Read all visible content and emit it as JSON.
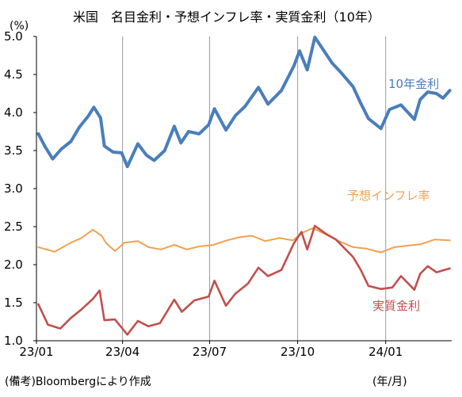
{
  "chart_data": {
    "type": "line",
    "title": "米国　名目金利・予想インフレ率・実質金利（10年）",
    "ylabel": "(%)",
    "xlabel": "(年/月)",
    "source": "(備考)Bloombergにより作成",
    "ylim": [
      1.0,
      5.0
    ],
    "yticks": [
      "5.0",
      "4.5",
      "4.0",
      "3.5",
      "3.0",
      "2.5",
      "2.0",
      "1.5",
      "1.0"
    ],
    "xticks": [
      "23/01",
      "23/04",
      "23/07",
      "23/10",
      "24/01"
    ],
    "xlim": [
      "2023-01-01",
      "2024-03-10"
    ],
    "grid": "x-major",
    "series": [
      {
        "name": "10年金利",
        "color": "#4a7ebb",
        "points": [
          [
            "2023-01-03",
            3.72
          ],
          [
            "2023-01-10",
            3.55
          ],
          [
            "2023-01-18",
            3.39
          ],
          [
            "2023-01-27",
            3.52
          ],
          [
            "2023-02-06",
            3.62
          ],
          [
            "2023-02-15",
            3.81
          ],
          [
            "2023-02-24",
            3.95
          ],
          [
            "2023-03-02",
            4.07
          ],
          [
            "2023-03-09",
            3.93
          ],
          [
            "2023-03-13",
            3.56
          ],
          [
            "2023-03-22",
            3.48
          ],
          [
            "2023-03-31",
            3.47
          ],
          [
            "2023-04-06",
            3.29
          ],
          [
            "2023-04-17",
            3.59
          ],
          [
            "2023-04-26",
            3.44
          ],
          [
            "2023-05-04",
            3.37
          ],
          [
            "2023-05-15",
            3.5
          ],
          [
            "2023-05-25",
            3.82
          ],
          [
            "2023-06-01",
            3.6
          ],
          [
            "2023-06-09",
            3.75
          ],
          [
            "2023-06-20",
            3.72
          ],
          [
            "2023-06-30",
            3.84
          ],
          [
            "2023-07-06",
            4.05
          ],
          [
            "2023-07-18",
            3.77
          ],
          [
            "2023-07-28",
            3.96
          ],
          [
            "2023-08-07",
            4.08
          ],
          [
            "2023-08-21",
            4.33
          ],
          [
            "2023-08-31",
            4.11
          ],
          [
            "2023-09-14",
            4.29
          ],
          [
            "2023-09-27",
            4.61
          ],
          [
            "2023-10-03",
            4.81
          ],
          [
            "2023-10-11",
            4.56
          ],
          [
            "2023-10-19",
            4.99
          ],
          [
            "2023-10-27",
            4.84
          ],
          [
            "2023-11-06",
            4.65
          ],
          [
            "2023-11-15",
            4.53
          ],
          [
            "2023-11-28",
            4.34
          ],
          [
            "2023-12-06",
            4.12
          ],
          [
            "2023-12-14",
            3.92
          ],
          [
            "2023-12-27",
            3.79
          ],
          [
            "2024-01-05",
            4.04
          ],
          [
            "2024-01-17",
            4.1
          ],
          [
            "2024-01-31",
            3.91
          ],
          [
            "2024-02-06",
            4.17
          ],
          [
            "2024-02-14",
            4.27
          ],
          [
            "2024-02-23",
            4.25
          ],
          [
            "2024-03-01",
            4.19
          ],
          [
            "2024-03-08",
            4.29
          ]
        ]
      },
      {
        "name": "予想インフレ率",
        "color": "#f2a050",
        "points": [
          [
            "2023-01-03",
            2.23
          ],
          [
            "2023-01-20",
            2.17
          ],
          [
            "2023-02-06",
            2.29
          ],
          [
            "2023-02-17",
            2.35
          ],
          [
            "2023-03-01",
            2.46
          ],
          [
            "2023-03-10",
            2.38
          ],
          [
            "2023-03-15",
            2.28
          ],
          [
            "2023-03-24",
            2.18
          ],
          [
            "2023-04-03",
            2.29
          ],
          [
            "2023-04-17",
            2.31
          ],
          [
            "2023-04-28",
            2.23
          ],
          [
            "2023-05-11",
            2.2
          ],
          [
            "2023-05-25",
            2.26
          ],
          [
            "2023-06-07",
            2.2
          ],
          [
            "2023-06-20",
            2.24
          ],
          [
            "2023-07-05",
            2.26
          ],
          [
            "2023-07-19",
            2.32
          ],
          [
            "2023-08-01",
            2.36
          ],
          [
            "2023-08-14",
            2.38
          ],
          [
            "2023-08-28",
            2.31
          ],
          [
            "2023-09-12",
            2.35
          ],
          [
            "2023-09-26",
            2.32
          ],
          [
            "2023-10-06",
            2.42
          ],
          [
            "2023-10-17",
            2.48
          ],
          [
            "2023-10-30",
            2.4
          ],
          [
            "2023-11-13",
            2.31
          ],
          [
            "2023-11-28",
            2.23
          ],
          [
            "2023-12-12",
            2.21
          ],
          [
            "2023-12-27",
            2.16
          ],
          [
            "2024-01-10",
            2.23
          ],
          [
            "2024-01-24",
            2.25
          ],
          [
            "2024-02-07",
            2.27
          ],
          [
            "2024-02-21",
            2.33
          ],
          [
            "2024-03-08",
            2.32
          ]
        ]
      },
      {
        "name": "実質金利",
        "color": "#c0504d",
        "points": [
          [
            "2023-01-03",
            1.48
          ],
          [
            "2023-01-13",
            1.21
          ],
          [
            "2023-01-26",
            1.16
          ],
          [
            "2023-02-06",
            1.3
          ],
          [
            "2023-02-17",
            1.41
          ],
          [
            "2023-03-01",
            1.55
          ],
          [
            "2023-03-08",
            1.66
          ],
          [
            "2023-03-13",
            1.27
          ],
          [
            "2023-03-24",
            1.28
          ],
          [
            "2023-04-06",
            1.08
          ],
          [
            "2023-04-17",
            1.26
          ],
          [
            "2023-04-28",
            1.19
          ],
          [
            "2023-05-10",
            1.23
          ],
          [
            "2023-05-25",
            1.54
          ],
          [
            "2023-06-02",
            1.38
          ],
          [
            "2023-06-15",
            1.53
          ],
          [
            "2023-06-30",
            1.58
          ],
          [
            "2023-07-06",
            1.79
          ],
          [
            "2023-07-18",
            1.46
          ],
          [
            "2023-07-28",
            1.62
          ],
          [
            "2023-08-10",
            1.75
          ],
          [
            "2023-08-21",
            1.96
          ],
          [
            "2023-08-31",
            1.85
          ],
          [
            "2023-09-14",
            1.93
          ],
          [
            "2023-09-27",
            2.28
          ],
          [
            "2023-10-05",
            2.43
          ],
          [
            "2023-10-11",
            2.2
          ],
          [
            "2023-10-19",
            2.51
          ],
          [
            "2023-10-30",
            2.41
          ],
          [
            "2023-11-10",
            2.33
          ],
          [
            "2023-11-28",
            2.1
          ],
          [
            "2023-12-06",
            1.93
          ],
          [
            "2023-12-14",
            1.72
          ],
          [
            "2023-12-27",
            1.68
          ],
          [
            "2024-01-08",
            1.7
          ],
          [
            "2024-01-17",
            1.85
          ],
          [
            "2024-01-31",
            1.67
          ],
          [
            "2024-02-06",
            1.88
          ],
          [
            "2024-02-14",
            1.98
          ],
          [
            "2024-02-23",
            1.9
          ],
          [
            "2024-03-08",
            1.95
          ]
        ]
      }
    ]
  }
}
